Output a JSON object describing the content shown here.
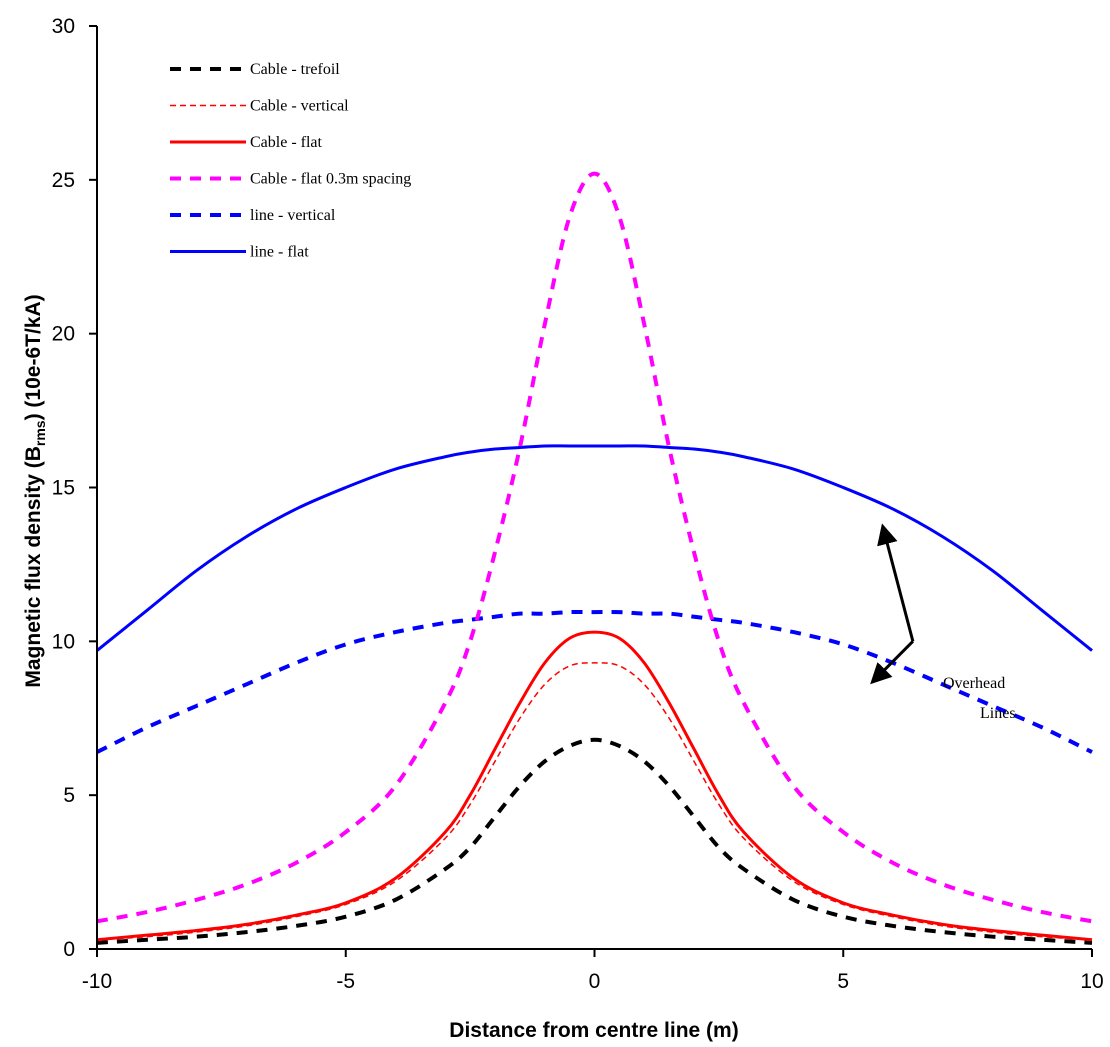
{
  "chart_data": {
    "type": "line",
    "xlabel": "Distance from centre line (m)",
    "ylabel_prefix": "Magnetic flux density (B",
    "ylabel_sub": "rms",
    "ylabel_suffix": ") (10e-6T/kA)",
    "xlim": [
      -10,
      10
    ],
    "ylim": [
      0,
      30
    ],
    "x_ticks": [
      -10,
      -5,
      0,
      5,
      10
    ],
    "y_ticks": [
      0,
      5,
      10,
      15,
      20,
      25,
      30
    ],
    "x_tick_labels": [
      "-10",
      "-5",
      "0",
      "5",
      "10"
    ],
    "y_tick_labels": [
      "0",
      "5",
      "10",
      "15",
      "20",
      "25",
      "30"
    ],
    "grid": false,
    "legend_position": "top-left",
    "x": [
      -10,
      -9,
      -8,
      -7,
      -6,
      -5,
      -4,
      -3,
      -2.5,
      -2,
      -1.5,
      -1,
      -0.5,
      0,
      0.5,
      1,
      1.5,
      2,
      2.5,
      3,
      4,
      5,
      6,
      7,
      8,
      9,
      10
    ],
    "series": [
      {
        "name": "Cable - trefoil",
        "color": "#000000",
        "dash": "long-dash",
        "values": [
          0.2,
          0.3,
          0.4,
          0.55,
          0.75,
          1.05,
          1.6,
          2.6,
          3.3,
          4.3,
          5.3,
          6.1,
          6.6,
          6.8,
          6.6,
          6.1,
          5.3,
          4.3,
          3.3,
          2.6,
          1.6,
          1.05,
          0.75,
          0.55,
          0.4,
          0.3,
          0.2
        ]
      },
      {
        "name": "Cable - vertical",
        "color": "#ff0000",
        "dash": "short-dash",
        "values": [
          0.3,
          0.4,
          0.55,
          0.75,
          1.05,
          1.45,
          2.2,
          3.6,
          4.7,
          6.1,
          7.5,
          8.6,
          9.2,
          9.3,
          9.2,
          8.6,
          7.5,
          6.1,
          4.7,
          3.6,
          2.2,
          1.45,
          1.05,
          0.75,
          0.55,
          0.4,
          0.3
        ]
      },
      {
        "name": "Cable - flat",
        "color": "#ff0000",
        "dash": "solid",
        "values": [
          0.3,
          0.45,
          0.6,
          0.8,
          1.1,
          1.5,
          2.3,
          3.8,
          5.0,
          6.5,
          8.0,
          9.3,
          10.1,
          10.3,
          10.1,
          9.3,
          8.0,
          6.5,
          5.0,
          3.8,
          2.3,
          1.5,
          1.1,
          0.8,
          0.6,
          0.45,
          0.3
        ]
      },
      {
        "name": "Cable - flat 0.3m spacing",
        "color": "#ff00ff",
        "dash": "long-dash",
        "values": [
          0.9,
          1.2,
          1.6,
          2.1,
          2.8,
          3.8,
          5.3,
          8.0,
          10.0,
          12.9,
          16.3,
          20.3,
          23.8,
          25.2,
          23.8,
          20.3,
          16.3,
          12.9,
          10.0,
          8.0,
          5.3,
          3.8,
          2.8,
          2.1,
          1.6,
          1.2,
          0.9
        ]
      },
      {
        "name": "line - vertical",
        "color": "#0000ff",
        "dash": "long-dash",
        "values": [
          6.4,
          7.2,
          7.9,
          8.6,
          9.3,
          9.9,
          10.3,
          10.6,
          10.7,
          10.8,
          10.9,
          10.9,
          10.95,
          10.95,
          10.95,
          10.9,
          10.9,
          10.8,
          10.7,
          10.6,
          10.3,
          9.9,
          9.3,
          8.6,
          7.9,
          7.2,
          6.4
        ]
      },
      {
        "name": "line - flat",
        "color": "#0000ff",
        "dash": "solid",
        "values": [
          9.7,
          11.0,
          12.3,
          13.4,
          14.3,
          15.0,
          15.6,
          16.0,
          16.15,
          16.25,
          16.3,
          16.35,
          16.35,
          16.35,
          16.35,
          16.35,
          16.3,
          16.25,
          16.15,
          16.0,
          15.6,
          15.0,
          14.3,
          13.4,
          12.3,
          11.0,
          9.7
        ]
      }
    ],
    "annotations": [
      {
        "text_line1": "Overhead",
        "text_line2": "Lines",
        "arrow_base": [
          6.4,
          10.0
        ],
        "arrow_targets": [
          [
            5.8,
            13.7
          ],
          [
            5.6,
            8.7
          ]
        ]
      }
    ]
  }
}
